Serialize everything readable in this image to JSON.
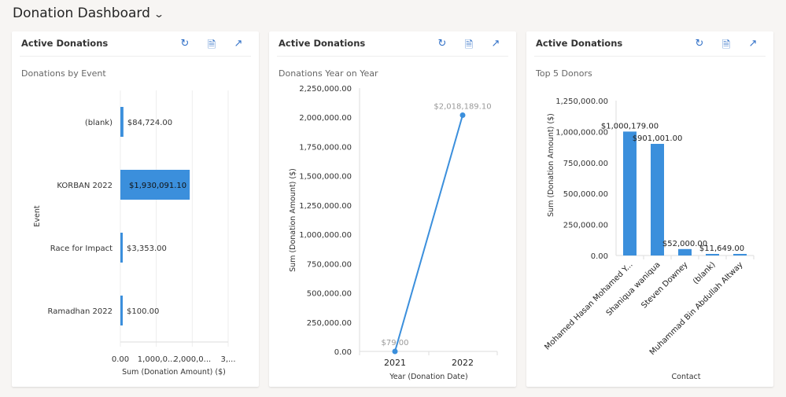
{
  "page": {
    "title": "Donation Dashboard"
  },
  "cards": [
    {
      "header": "Active Donations",
      "subtitle": "Donations by Event"
    },
    {
      "header": "Active Donations",
      "subtitle": "Donations Year on Year"
    },
    {
      "header": "Active Donations",
      "subtitle": "Top 5 Donors"
    }
  ],
  "icons": [
    "refresh-icon",
    "export-icon",
    "expand-icon"
  ],
  "colors": {
    "bar": "#3b8fdc",
    "line": "#3b8fdc"
  },
  "chart_data": [
    {
      "type": "bar",
      "orientation": "horizontal",
      "title": "Donations by Event",
      "xlabel": "Sum (Donation Amount) ($)",
      "ylabel": "Event",
      "categories": [
        "(blank)",
        "KORBAN 2022",
        "Race for Impact",
        "Ramadhan 2022"
      ],
      "values": [
        84724,
        1930091.1,
        3353,
        100
      ],
      "data_labels": [
        "$84,724.00",
        "$1,930,091.10",
        "$3,353.00",
        "$100.00"
      ],
      "xlim": [
        0,
        3000000
      ],
      "x_ticks": [
        "0.00",
        "1,000,0...",
        "2,000,0...",
        "3,..."
      ],
      "grid": true
    },
    {
      "type": "line",
      "title": "Donations Year on Year",
      "xlabel": "Year (Donation Date)",
      "ylabel": "Sum (Donation Amount) ($)",
      "categories": [
        "2021",
        "2022"
      ],
      "values": [
        79,
        2018189.1
      ],
      "data_labels": [
        "$79.00",
        "$2,018,189.10"
      ],
      "ylim": [
        0,
        2250000
      ],
      "y_ticks": [
        "0.00",
        "250,000.00",
        "500,000.00",
        "750,000.00",
        "1,000,000.00",
        "1,250,000.00",
        "1,500,000.00",
        "1,750,000.00",
        "2,000,000.00",
        "2,250,000.00"
      ],
      "grid": false
    },
    {
      "type": "bar",
      "title": "Top 5 Donors",
      "xlabel": "Contact",
      "ylabel": "Sum (Donation Amount) ($)",
      "categories": [
        "Mohamed Hasan Mohamed Y...",
        "Shaniqua waniqua",
        "Steven Downey",
        "(blank)",
        "Muhammad Bin Abdullah Altway"
      ],
      "values": [
        1000179,
        901001,
        52000,
        11649,
        11000
      ],
      "data_labels": [
        "$1,000,179.00",
        "$901,001.00",
        "$52,000.00",
        "$11,649.00",
        ""
      ],
      "ylim": [
        0,
        1250000
      ],
      "y_ticks": [
        "0.00",
        "250,000.00",
        "500,000.00",
        "750,000.00",
        "1,000,000.00",
        "1,250,000.00"
      ],
      "grid": false
    }
  ]
}
